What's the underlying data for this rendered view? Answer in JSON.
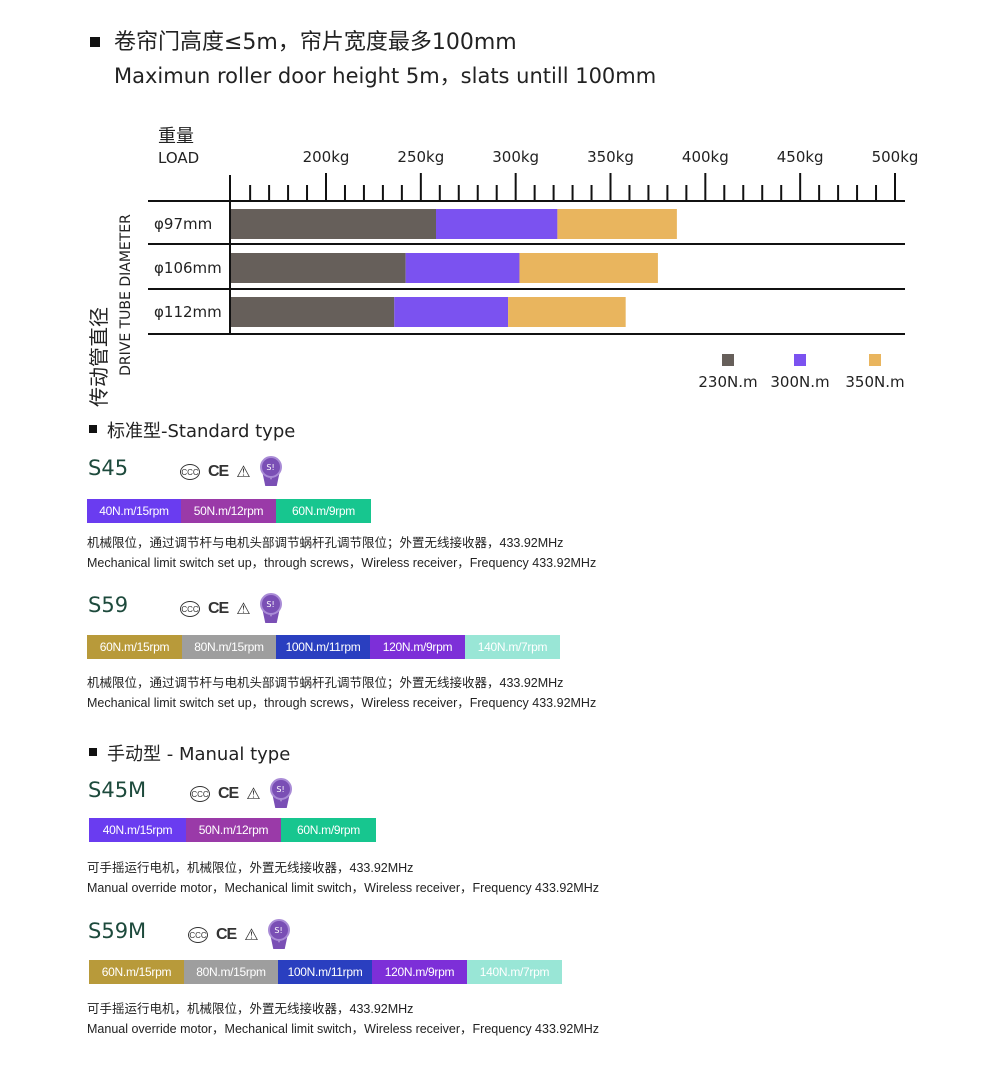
{
  "header": {
    "title_cn": "卷帘门高度≤5m，帘片宽度最多100mm",
    "title_en": "Maximun roller door height 5m，slats untill 100mm"
  },
  "chart_data": {
    "type": "bar",
    "stacked": true,
    "orientation": "horizontal",
    "xlabel_cn": "重量",
    "xlabel": "LOAD",
    "ylabel_cn": "传动管直径",
    "ylabel": "DRIVE TUBE DIAMETER",
    "x_ticks": [
      "200kg",
      "250kg",
      "300kg",
      "350kg",
      "400kg",
      "450kg",
      "500kg"
    ],
    "categories": [
      "φ97mm",
      "φ106mm",
      "φ112mm"
    ],
    "series": [
      {
        "name": "230N.m",
        "color": "#665f5a",
        "values": [
          258,
          242,
          236
        ]
      },
      {
        "name": "300N.m",
        "color": "#7b52f0",
        "values": [
          322,
          302,
          296
        ]
      },
      {
        "name": "350N.m",
        "color": "#e9b55e",
        "values": [
          385,
          375,
          358
        ]
      }
    ],
    "legend_position": "bottom-right"
  },
  "standard": {
    "heading": "标准型-Standard type",
    "models": [
      {
        "name": "S45",
        "pills": [
          {
            "text": "40N.m/15rpm",
            "color": "#6a3cf0"
          },
          {
            "text": "50N.m/12rpm",
            "color": "#9a3aa8"
          },
          {
            "text": "60N.m/9rpm",
            "color": "#17c68f"
          }
        ],
        "desc_cn": "机械限位，通过调节杆与电机头部调节蜗杆孔调节限位；外置无线接收器，433.92MHz",
        "desc_en": "Mechanical limit switch set up，through screws，Wireless receiver，Frequency 433.92MHz"
      },
      {
        "name": "S59",
        "pills": [
          {
            "text": "60N.m/15rpm",
            "color": "#b89a3a"
          },
          {
            "text": "80N.m/15rpm",
            "color": "#9e9e9e"
          },
          {
            "text": "100N.m/11rpm",
            "color": "#2a3fc0"
          },
          {
            "text": "120N.m/9rpm",
            "color": "#7d2fd8"
          },
          {
            "text": "140N.m/7rpm",
            "color": "#99e6d6"
          }
        ],
        "desc_cn": "机械限位，通过调节杆与电机头部调节蜗杆孔调节限位；外置无线接收器，433.92MHz",
        "desc_en": "Mechanical limit switch set up，through screws，Wireless receiver，Frequency 433.92MHz"
      }
    ]
  },
  "manual": {
    "heading": "手动型 - Manual type",
    "models": [
      {
        "name": "S45M",
        "pills": [
          {
            "text": "40N.m/15rpm",
            "color": "#6a3cf0"
          },
          {
            "text": "50N.m/12rpm",
            "color": "#9a3aa8"
          },
          {
            "text": "60N.m/9rpm",
            "color": "#17c68f"
          }
        ],
        "desc_cn": "可手摇运行电机，机械限位，外置无线接收器，433.92MHz",
        "desc_en": "Manual override motor，Mechanical limit switch，Wireless receiver，Frequency 433.92MHz"
      },
      {
        "name": "S59M",
        "pills": [
          {
            "text": "60N.m/15rpm",
            "color": "#b89a3a"
          },
          {
            "text": "80N.m/15rpm",
            "color": "#9e9e9e"
          },
          {
            "text": "100N.m/11rpm",
            "color": "#2a3fc0"
          },
          {
            "text": "120N.m/9rpm",
            "color": "#7d2fd8"
          },
          {
            "text": "140N.m/7rpm",
            "color": "#99e6d6"
          }
        ],
        "desc_cn": "可手摇运行电机，机械限位，外置无线接收器，433.92MHz",
        "desc_en": "Manual override motor，Mechanical limit switch，Wireless receiver，Frequency 433.92MHz"
      }
    ]
  },
  "certifications": {
    "ccc": "CCC",
    "ce": "CE",
    "warning": "⚠",
    "badge": "S!"
  }
}
